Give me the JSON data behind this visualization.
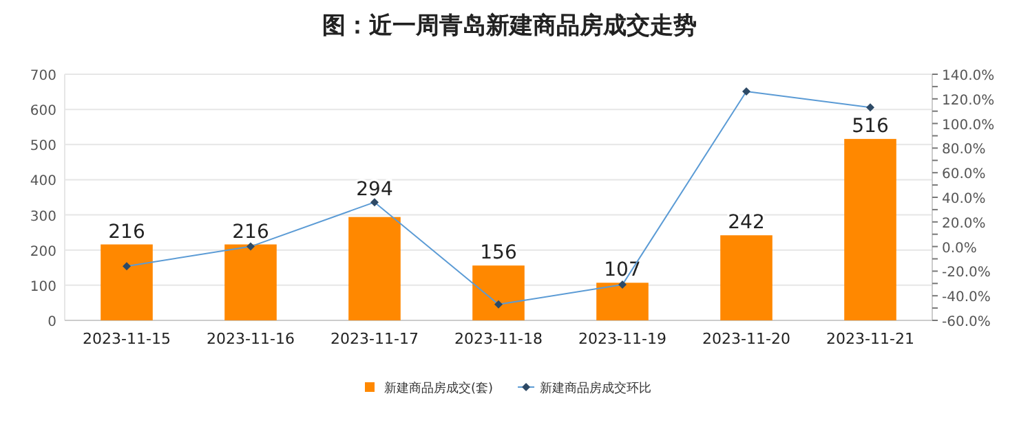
{
  "chart_data": {
    "type": "bar",
    "title": "图：近一周青岛新建商品房成交走势",
    "categories": [
      "2023-11-15",
      "2023-11-16",
      "2023-11-17",
      "2023-11-18",
      "2023-11-19",
      "2023-11-20",
      "2023-11-21"
    ],
    "series": [
      {
        "name": "新建商品房成交(套)",
        "color": "#ff8800",
        "values": [
          216,
          216,
          294,
          156,
          107,
          242,
          516
        ],
        "value_labels": [
          "216",
          "216",
          "294",
          "156",
          "107",
          "242",
          "516"
        ]
      },
      {
        "name": "新建商品房成交环比",
        "type": "line",
        "axis": "y2",
        "color": "#5b9bd5",
        "marker": "diamond",
        "values": [
          -16,
          0,
          36,
          -47,
          -31,
          126,
          113
        ]
      }
    ],
    "ylim": [
      0,
      700
    ],
    "yticks": [
      0,
      100,
      200,
      300,
      400,
      500,
      600,
      700
    ],
    "y2lim": [
      -60,
      140
    ],
    "y2ticks": [
      {
        "value": -60,
        "label": "-60.0%"
      },
      {
        "value": -50,
        "label": null
      },
      {
        "value": -40,
        "label": "-40.0%"
      },
      {
        "value": -30,
        "label": null
      },
      {
        "value": -20,
        "label": "-20.0%"
      },
      {
        "value": -10,
        "label": null
      },
      {
        "value": 0,
        "label": "0.0%"
      },
      {
        "value": 10,
        "label": null
      },
      {
        "value": 20,
        "label": "20.0%"
      },
      {
        "value": 30,
        "label": null
      },
      {
        "value": 40,
        "label": "40.0%"
      },
      {
        "value": 50,
        "label": null
      },
      {
        "value": 60,
        "label": "60.0%"
      },
      {
        "value": 70,
        "label": null
      },
      {
        "value": 80,
        "label": "80.0%"
      },
      {
        "value": 90,
        "label": null
      },
      {
        "value": 100,
        "label": "100.0%"
      },
      {
        "value": 110,
        "label": null
      },
      {
        "value": 120,
        "label": "120.0%"
      },
      {
        "value": 130,
        "label": null
      },
      {
        "value": 140,
        "label": "140.0%"
      }
    ],
    "grid": "y",
    "legend": "bottom"
  }
}
